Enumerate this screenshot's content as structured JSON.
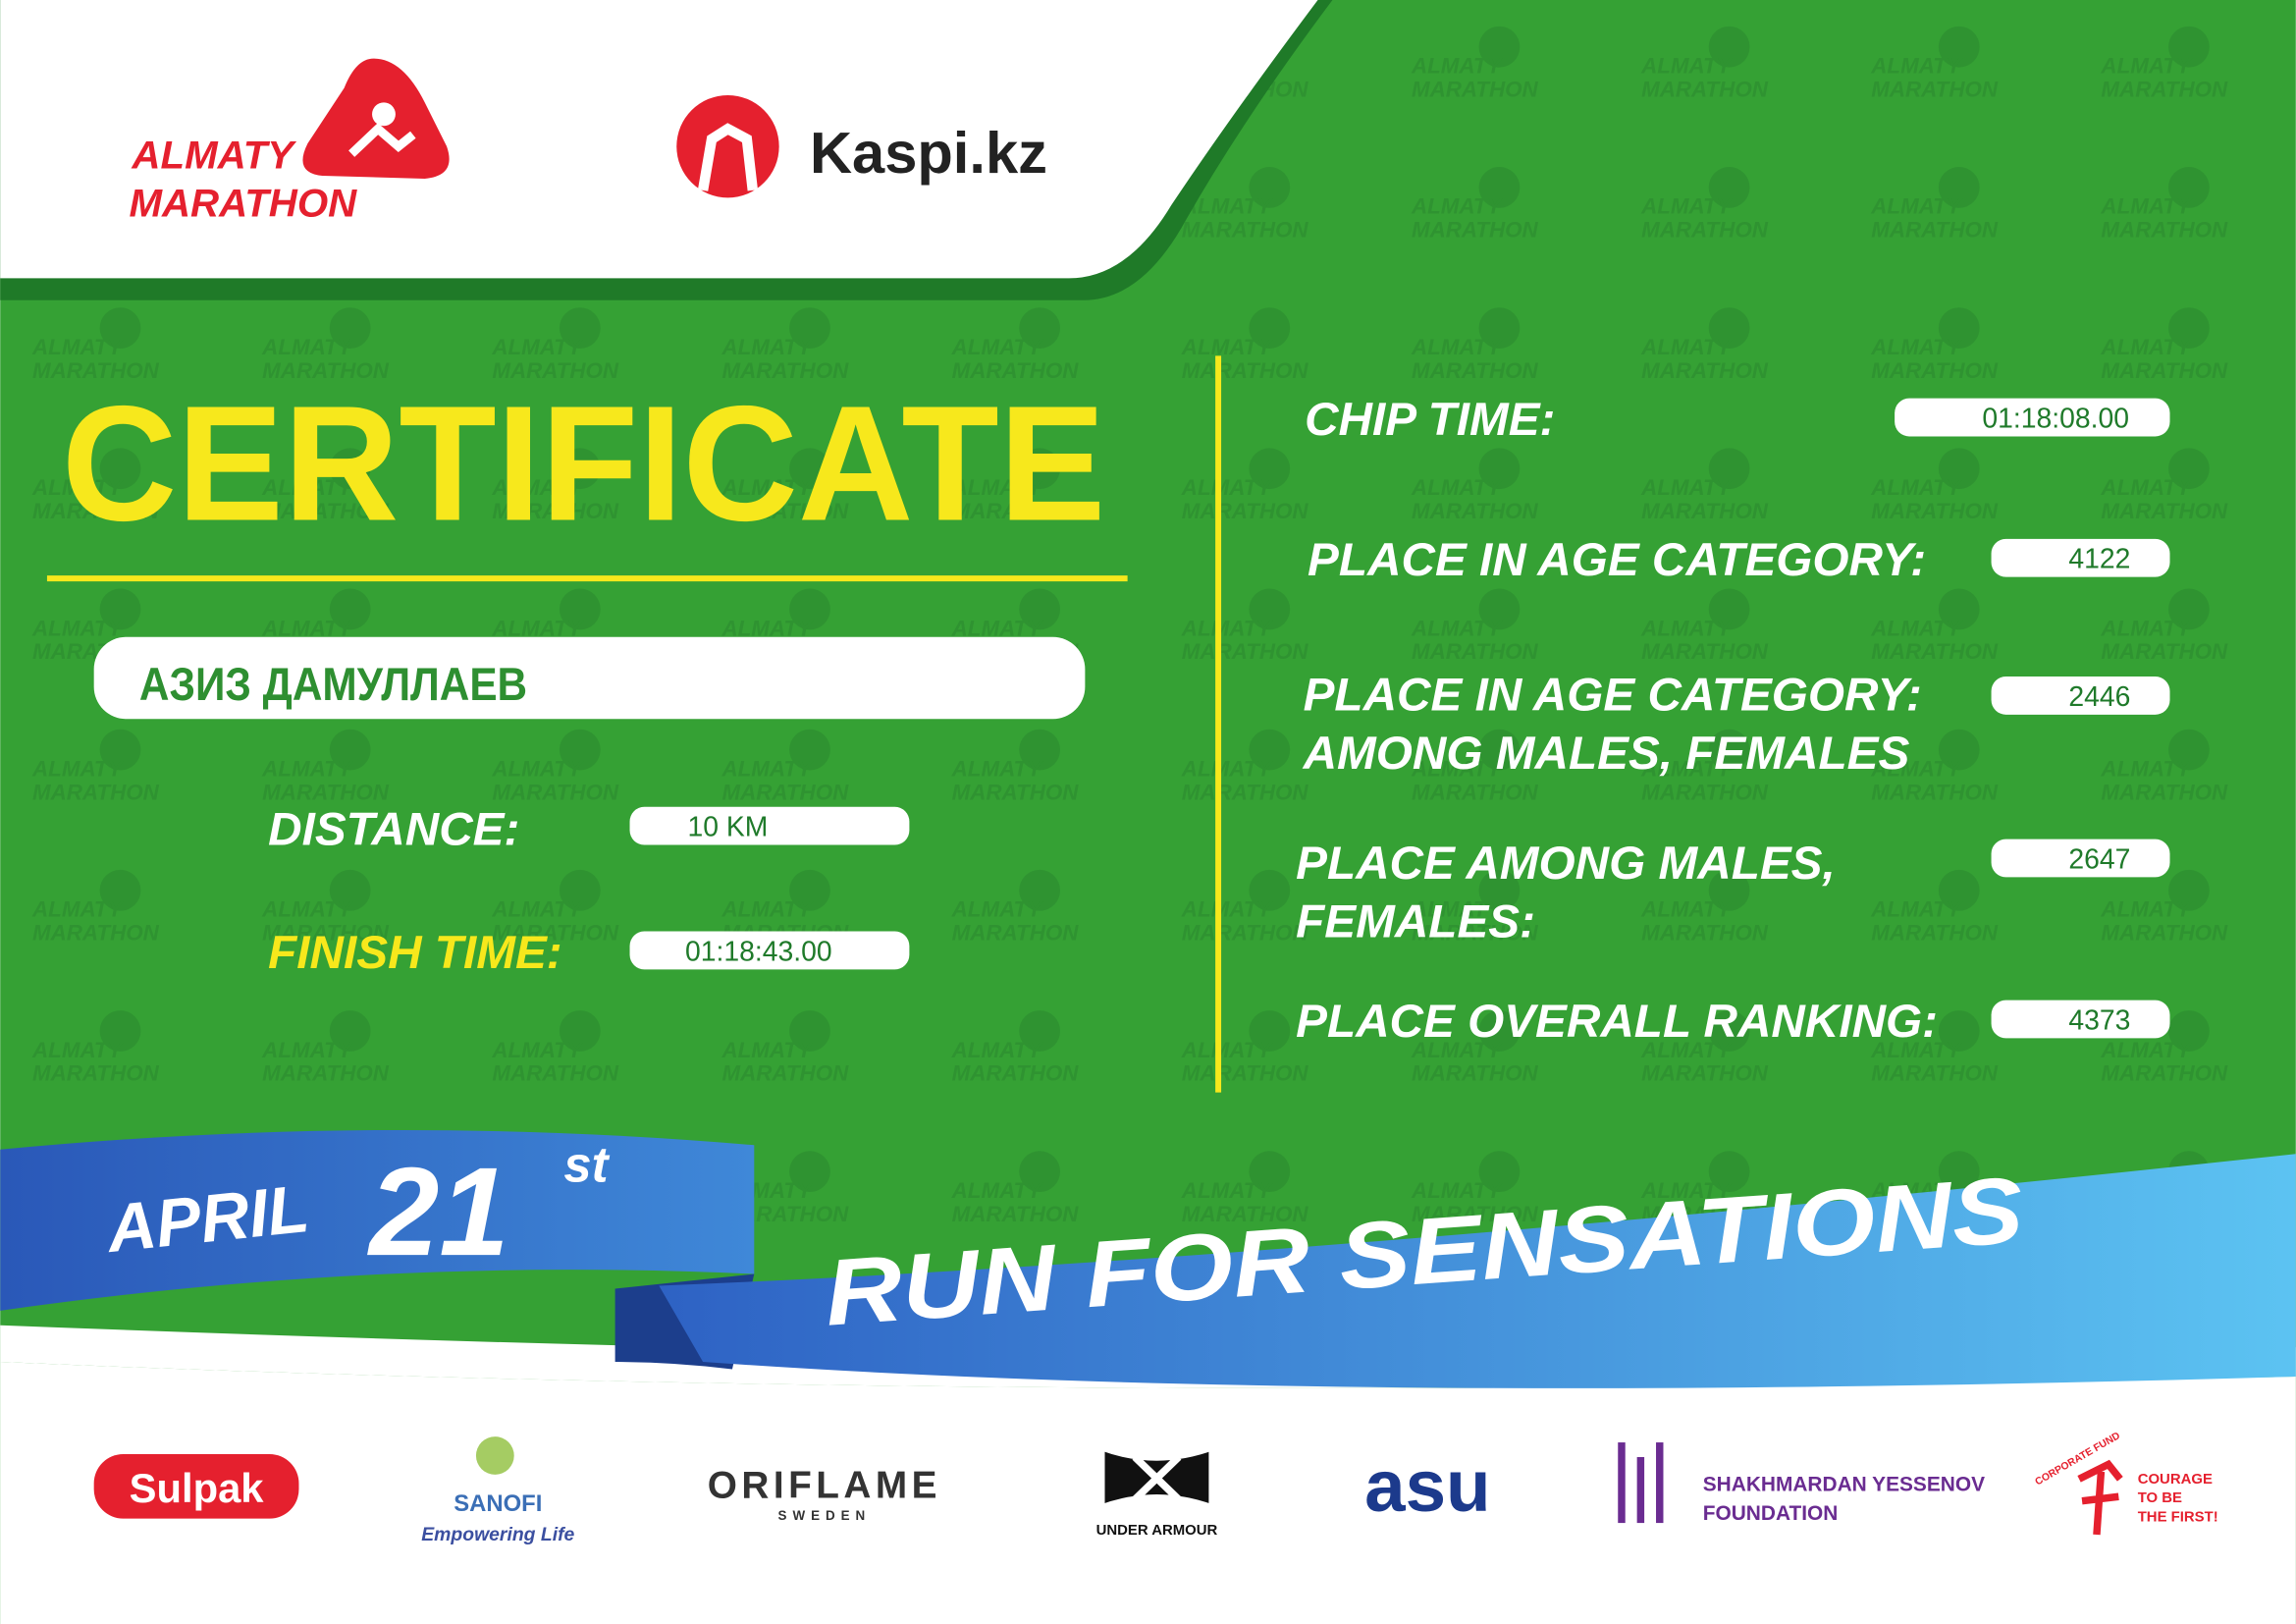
{
  "header": {
    "event_logo": [
      "ALMATY",
      "MARATHON"
    ],
    "sponsor": "Kaspi.kz"
  },
  "watermark": [
    "ALMATY",
    "MARATHON"
  ],
  "certificate": {
    "title": "CERTIFICATE",
    "participant": "АЗИЗ ДАМУЛЛАЕВ",
    "distance": {
      "label": "DISTANCE:",
      "value": "10 KM"
    },
    "finish_time": {
      "label": "FINISH TIME:",
      "value": "01:18:43.00"
    }
  },
  "results": [
    {
      "label": [
        "CHIP TIME:"
      ],
      "value": "01:18:08.00"
    },
    {
      "label": [
        "PLACE IN AGE CATEGORY:"
      ],
      "value": "4122"
    },
    {
      "label": [
        "PLACE IN AGE CATEGORY:",
        "AMONG MALES, FEMALES"
      ],
      "value": "2446"
    },
    {
      "label": [
        "PLACE AMONG MALES,",
        "FEMALES:"
      ],
      "value": "2647"
    },
    {
      "label": [
        "PLACE OVERALL RANKING:"
      ],
      "value": "4373"
    }
  ],
  "banner": {
    "month": "APRIL",
    "day": "21",
    "suffix": "st",
    "slogan": "RUN FOR SENSATIONS"
  },
  "partners": {
    "sulpak": "Sulpak",
    "sanofi": [
      "SANOFI",
      "Empowering Life"
    ],
    "oriflame": [
      "ORIFLAME",
      "SWEDEN"
    ],
    "under_armour": "UNDER ARMOUR",
    "asu": "asu",
    "yessenov": [
      "SHAKHMARDAN YESSENOV",
      "FOUNDATION"
    ],
    "corporate_fund": [
      "CORPORATE FUND",
      "COURAGE",
      "TO BE",
      "THE FIRST!"
    ]
  }
}
